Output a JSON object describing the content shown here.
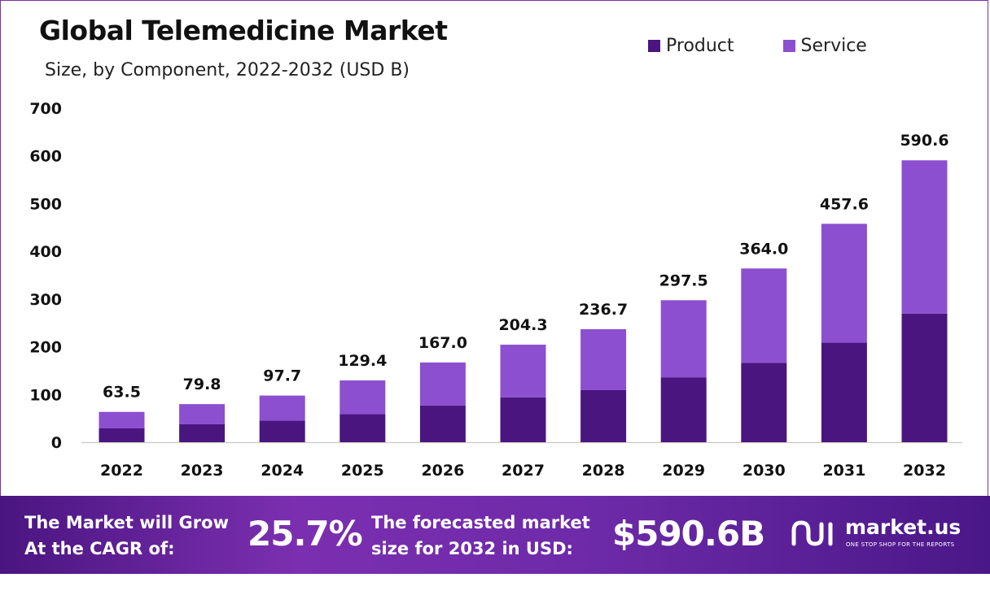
{
  "header": {
    "title": "Global Telemedicine Market",
    "subtitle": "Size, by Component, 2022-2032 (USD B)"
  },
  "colors": {
    "product": "#4b1580",
    "service": "#8c4fd0",
    "banner": "#6d2aa8"
  },
  "chart_data": {
    "type": "bar",
    "stacked": true,
    "categories": [
      "2022",
      "2023",
      "2024",
      "2025",
      "2026",
      "2027",
      "2028",
      "2029",
      "2030",
      "2031",
      "2032"
    ],
    "series": [
      {
        "name": "Product",
        "values": [
          29.0,
          37.5,
          45.5,
          59.0,
          77.0,
          94.0,
          109.0,
          136.0,
          166.5,
          208.5,
          269.5
        ]
      },
      {
        "name": "Service",
        "values": [
          34.5,
          42.3,
          52.2,
          70.4,
          90.0,
          110.3,
          127.7,
          161.5,
          197.5,
          249.1,
          321.1
        ]
      }
    ],
    "totals": [
      "63.5",
      "79.8",
      "97.7",
      "129.4",
      "167.0",
      "204.3",
      "236.7",
      "297.5",
      "364.0",
      "457.6",
      "590.6"
    ],
    "yticks": [
      "0",
      "100",
      "200",
      "300",
      "400",
      "500",
      "600",
      "700"
    ],
    "ylim": [
      0,
      700
    ],
    "grid": false,
    "legend": "top-right"
  },
  "banner": {
    "cagr_label": "The Market will Grow\nAt the CAGR of:",
    "cagr_value": "25.7%",
    "forecast_label": "The forecasted market\nsize for 2032 in USD:",
    "forecast_value": "$590.6B",
    "brand_name": "market.us",
    "brand_tagline": "ONE STOP SHOP FOR THE REPORTS"
  }
}
